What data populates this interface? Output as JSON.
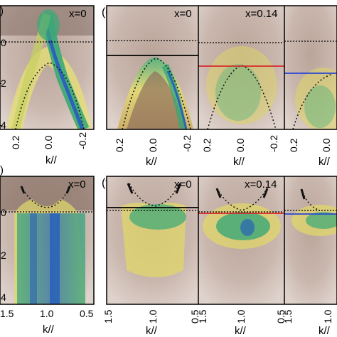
{
  "figure": {
    "top_left": {
      "label_text": "x=0",
      "y_ticks": [
        "0",
        "2",
        "4"
      ],
      "y_prefix": [
        "-",
        "-",
        "-"
      ],
      "x_ticks": [
        "0.2",
        "0.0",
        "-0.2"
      ],
      "x_label": "k//"
    },
    "bottom_left": {
      "label_text": "x=0",
      "y_ticks": [
        "0",
        "2",
        "4"
      ],
      "x_ticks": [
        "1.5",
        "1.0",
        "0.5"
      ],
      "x_label": "k//"
    },
    "panel_e": {
      "panel_letter": "(e)",
      "subpanels": [
        {
          "label_text": "x=0",
          "line_color": "#000000"
        },
        {
          "label_text": "x=0.14",
          "line_color": "#d42a2a"
        },
        {
          "label_text": "",
          "line_color": "#2a46d4"
        }
      ],
      "x_ticks": [
        "0.2",
        "0.0",
        "-0.2"
      ],
      "x_label": "k//"
    },
    "panel_f": {
      "panel_letter": "(f)",
      "subpanels": [
        {
          "label_text": "x=0",
          "line_color": "#000000"
        },
        {
          "label_text": "x=0.14",
          "line_color": "#d42a2a"
        },
        {
          "label_text": "",
          "line_color": "#2a46d4"
        }
      ],
      "x_ticks": [
        "1.5",
        "1.0",
        "0.5"
      ],
      "x_label": "k//"
    },
    "left_fragment_upper": ")",
    "left_fragment_lower": ")",
    "colors": {
      "background_brown": "#8a6a5a",
      "yellow": "#e8e070",
      "green": "#3aa877",
      "blue": "#2b63b8"
    }
  }
}
